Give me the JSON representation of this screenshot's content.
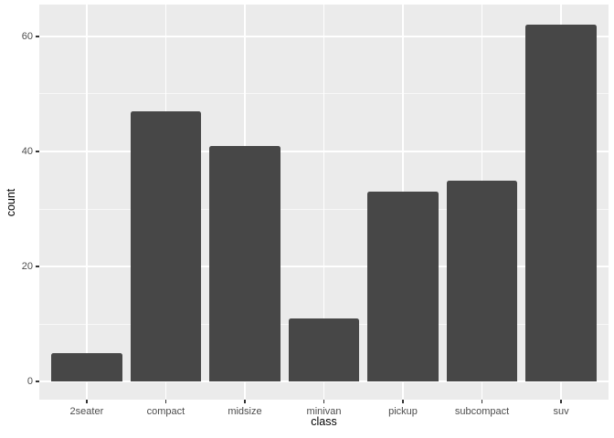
{
  "chart_data": {
    "type": "bar",
    "style": "ggplot2-grey-theme",
    "title": "",
    "xlabel": "class",
    "ylabel": "count",
    "categories": [
      "2seater",
      "compact",
      "midsize",
      "minivan",
      "pickup",
      "subcompact",
      "suv"
    ],
    "values": [
      5,
      47,
      41,
      11,
      33,
      35,
      62
    ],
    "yticks": [
      0,
      20,
      40,
      60
    ],
    "yticks_minor": [
      10,
      30,
      50
    ],
    "ylim": [
      -3.17,
      65.55
    ],
    "grid": "white major and minor horizontal lines, white vertical lines at category centers",
    "legend": "none",
    "colors": {
      "bar_fill": "#474747",
      "panel_background": "#EBEBEB",
      "figure_background": "#FFFFFF",
      "grid_major": "#FFFFFF",
      "grid_minor": "#FFFFFF",
      "tick_mark": "#333333",
      "tick_label": "#4D4D4D",
      "axis_title": "#000000"
    }
  }
}
